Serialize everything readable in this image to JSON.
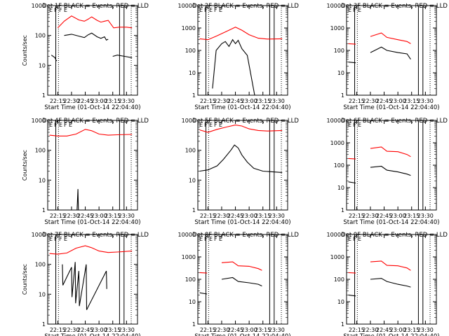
{
  "colors": {
    "events": "#000000",
    "lld": "#ff0000",
    "axis": "#000000",
    "background": "#ffffff"
  },
  "chart_data": [
    {
      "type": "line",
      "title": "Det 1F BLACK = Events, RED = LLD",
      "ylabel": "Counts/sec",
      "xlabel": "Start Time (01-Oct-14 22:04:40)",
      "ylog": true,
      "ylim": [
        1,
        1000
      ],
      "yticks": [
        "1",
        "10",
        "100",
        "1000"
      ],
      "xticks": [
        "22:15",
        "22:30",
        "22:45",
        "23:00",
        "23:15",
        "23:30"
      ],
      "flags": [
        "E",
        "F",
        "F",
        "E"
      ],
      "series": [
        {
          "name": "Events",
          "color": "#000000",
          "x": [
            "22:08",
            "22:12",
            "22:13",
            "22:14",
            "22:16",
            "22:22",
            "22:30",
            "22:38",
            "22:44",
            "22:48",
            "22:52",
            "22:58",
            "23:02",
            "23:06",
            "23:08",
            "23:10",
            "23:14",
            "23:15",
            "23:20",
            "23:28",
            "23:36"
          ],
          "y": [
            22,
            18,
            15,
            14,
            null,
            100,
            110,
            95,
            85,
            105,
            120,
            90,
            80,
            90,
            70,
            75,
            null,
            20,
            22,
            20,
            18
          ]
        },
        {
          "name": "LLD",
          "color": "#ff0000",
          "x": [
            "22:15",
            "22:22",
            "22:30",
            "22:38",
            "22:44",
            "22:48",
            "22:52",
            "22:58",
            "23:02",
            "23:06",
            "23:10",
            "23:16",
            "23:22",
            "23:30",
            "23:36"
          ],
          "y": [
            180,
            300,
            450,
            330,
            300,
            350,
            420,
            320,
            280,
            300,
            320,
            180,
            190,
            190,
            180
          ]
        }
      ]
    },
    {
      "type": "line",
      "title": "Det 2F BLACK = Events, RED = LLD",
      "ylabel": "",
      "xlabel": "Start Time (01-Oct-14 22:04:40)",
      "ylog": true,
      "ylim": [
        1,
        10000
      ],
      "yticks": [
        "1",
        "10",
        "100",
        "1000",
        "10000"
      ],
      "xticks": [
        "22:15",
        "22:30",
        "22:45",
        "23:00",
        "23:15",
        "23:30"
      ],
      "flags": [
        "E",
        "F",
        "E",
        "F",
        "E"
      ],
      "series": [
        {
          "name": "Events",
          "color": "#000000",
          "x": [
            "22:20",
            "22:24",
            "22:30",
            "22:34",
            "22:38",
            "22:42",
            "22:45",
            "22:48",
            "22:52",
            "22:58",
            "23:06"
          ],
          "y": [
            2,
            100,
            200,
            250,
            150,
            300,
            200,
            280,
            120,
            60,
            1
          ]
        },
        {
          "name": "LLD",
          "color": "#ff0000",
          "x": [
            "22:06",
            "22:15",
            "22:25",
            "22:35",
            "22:45",
            "22:52",
            "23:00",
            "23:10",
            "23:20",
            "23:36"
          ],
          "y": [
            330,
            300,
            450,
            700,
            1100,
            800,
            500,
            350,
            320,
            330
          ]
        }
      ]
    },
    {
      "type": "line",
      "title": "Det 3F BLACK = Events, RED = LLD",
      "ylabel": "",
      "xlabel": "Start Time (01-Oct-14 22:04:40)",
      "ylog": true,
      "ylim": [
        1,
        10000
      ],
      "yticks": [
        "1",
        "10",
        "100",
        "1000",
        "10000"
      ],
      "xticks": [
        "22:15",
        "22:30",
        "22:45",
        "23:00",
        "23:15",
        "23:30"
      ],
      "flags": [
        "E",
        "F",
        "E"
      ],
      "series": [
        {
          "name": "Events",
          "color": "#000000",
          "x": [
            "22:06",
            "22:14",
            "22:16",
            "22:30",
            "22:42",
            "22:48",
            "23:00",
            "23:10",
            "23:14",
            "23:17",
            "23:36"
          ],
          "y": [
            30,
            28,
            null,
            80,
            140,
            100,
            80,
            70,
            40,
            null,
            25
          ]
        },
        {
          "name": "LLD",
          "color": "#ff0000",
          "x": [
            "22:06",
            "22:14",
            "22:16",
            "22:30",
            "22:42",
            "22:48",
            "23:00",
            "23:10",
            "23:14",
            "23:17",
            "23:36"
          ],
          "y": [
            200,
            190,
            null,
            420,
            600,
            380,
            300,
            250,
            200,
            null,
            170
          ]
        }
      ]
    },
    {
      "type": "line",
      "title": "Det 4F BLACK = Events, RED = LLD",
      "ylabel": "Counts/sec",
      "xlabel": "Start Time (01-Oct-14 22:04:40)",
      "ylog": true,
      "ylim": [
        1,
        1000
      ],
      "yticks": [
        "1",
        "10",
        "100",
        "1000"
      ],
      "xticks": [
        "22:15",
        "22:30",
        "22:45",
        "23:00",
        "23:15",
        "23:30"
      ],
      "flags": [
        "E",
        "F",
        "E",
        "F",
        "E"
      ],
      "series": [
        {
          "name": "Events",
          "color": "#000000",
          "x": [
            "22:36",
            "22:36.5",
            "22:37",
            "22:37.5"
          ],
          "y": [
            1,
            2,
            5,
            1
          ]
        },
        {
          "name": "LLD",
          "color": "#ff0000",
          "x": [
            "22:06",
            "22:15",
            "22:25",
            "22:35",
            "22:45",
            "22:52",
            "23:00",
            "23:10",
            "23:20",
            "23:36"
          ],
          "y": [
            320,
            300,
            300,
            350,
            500,
            450,
            350,
            320,
            330,
            340
          ]
        }
      ]
    },
    {
      "type": "line",
      "title": "Det 5F BLACK = Events, RED = LLD",
      "ylabel": "",
      "xlabel": "Start Time (01-Oct-14 22:04:40)",
      "ylog": true,
      "ylim": [
        1,
        1000
      ],
      "yticks": [
        "1",
        "10",
        "100",
        "1000"
      ],
      "xticks": [
        "22:15",
        "22:30",
        "22:45",
        "23:00",
        "23:15",
        "23:30"
      ],
      "flags": [
        "E",
        "F",
        "E",
        "F",
        "E"
      ],
      "series": [
        {
          "name": "Events",
          "color": "#000000",
          "x": [
            "22:06",
            "22:15",
            "22:25",
            "22:32",
            "22:40",
            "22:44",
            "22:48",
            "22:52",
            "22:58",
            "23:05",
            "23:15",
            "23:36"
          ],
          "y": [
            20,
            22,
            30,
            50,
            100,
            150,
            120,
            70,
            40,
            25,
            20,
            18
          ]
        },
        {
          "name": "LLD",
          "color": "#ff0000",
          "x": [
            "22:06",
            "22:15",
            "22:25",
            "22:35",
            "22:45",
            "22:52",
            "23:00",
            "23:10",
            "23:20",
            "23:36"
          ],
          "y": [
            480,
            400,
            500,
            600,
            700,
            650,
            520,
            460,
            440,
            460
          ]
        }
      ]
    },
    {
      "type": "line",
      "title": "Det 6F BLACK = Events, RED = LLD",
      "ylabel": "",
      "xlabel": "Start Time (01-Oct-14 22:04:40)",
      "ylog": true,
      "ylim": [
        1,
        10000
      ],
      "yticks": [
        "1",
        "10",
        "100",
        "1000",
        "10000"
      ],
      "xticks": [
        "22:15",
        "22:30",
        "22:45",
        "23:00",
        "23:15",
        "23:30"
      ],
      "flags": [
        "E",
        "F",
        "E"
      ],
      "series": [
        {
          "name": "Events",
          "color": "#000000",
          "x": [
            "22:06",
            "22:14",
            "22:16",
            "22:30",
            "22:42",
            "22:48",
            "23:00",
            "23:10",
            "23:14",
            "23:17",
            "23:36"
          ],
          "y": [
            18,
            16,
            null,
            80,
            90,
            60,
            50,
            40,
            35,
            null,
            18
          ]
        },
        {
          "name": "LLD",
          "color": "#ff0000",
          "x": [
            "22:06",
            "22:14",
            "22:16",
            "22:30",
            "22:42",
            "22:48",
            "23:00",
            "23:10",
            "23:14",
            "23:17",
            "23:36"
          ],
          "y": [
            200,
            190,
            null,
            560,
            650,
            420,
            400,
            300,
            240,
            null,
            190
          ]
        }
      ]
    },
    {
      "type": "line",
      "title": "Det 7F BLACK = Events, RED = LLD",
      "ylabel": "Counts/sec",
      "xlabel": "Start Time (01-Oct-14 22:04:40)",
      "ylog": true,
      "ylim": [
        1,
        1000
      ],
      "yticks": [
        "1",
        "10",
        "100",
        "1000"
      ],
      "xticks": [
        "22:15",
        "22:30",
        "22:45",
        "23:00",
        "23:15",
        "23:30"
      ],
      "flags": [
        "E",
        "F",
        "F",
        "E"
      ],
      "series": [
        {
          "name": "Events",
          "color": "#000000",
          "x": [
            "22:20",
            "22:20.5",
            "22:30",
            "22:30.5",
            "22:34",
            "22:34.5",
            "22:38",
            "22:38.5",
            "22:46",
            "22:46.5",
            "23:08",
            "23:08.5"
          ],
          "y": [
            100,
            20,
            80,
            8,
            120,
            5,
            60,
            4,
            100,
            3,
            60,
            15
          ]
        },
        {
          "name": "LLD",
          "color": "#ff0000",
          "x": [
            "22:06",
            "22:15",
            "22:25",
            "22:35",
            "22:45",
            "22:52",
            "23:00",
            "23:10",
            "23:20",
            "23:36"
          ],
          "y": [
            230,
            220,
            240,
            350,
            420,
            360,
            280,
            250,
            260,
            280
          ]
        }
      ]
    },
    {
      "type": "line",
      "title": "Det 8F BLACK = Events, RED = LLD",
      "ylabel": "",
      "xlabel": "Start Time (01-Oct-14 22:04:40)",
      "ylog": true,
      "ylim": [
        1,
        10000
      ],
      "yticks": [
        "1",
        "10",
        "100",
        "1000",
        "10000"
      ],
      "xticks": [
        "22:15",
        "22:30",
        "22:45",
        "23:00",
        "23:15",
        "23:30"
      ],
      "flags": [
        "E",
        "F",
        "E",
        "F",
        "E"
      ],
      "series": [
        {
          "name": "Events",
          "color": "#000000",
          "x": [
            "22:06",
            "22:14",
            "22:16",
            "22:30",
            "22:42",
            "22:48",
            "23:00",
            "23:10",
            "23:14",
            "23:17",
            "23:36"
          ],
          "y": [
            25,
            22,
            null,
            100,
            120,
            80,
            70,
            60,
            50,
            null,
            28
          ]
        },
        {
          "name": "LLD",
          "color": "#ff0000",
          "x": [
            "22:06",
            "22:14",
            "22:16",
            "22:30",
            "22:42",
            "22:48",
            "23:00",
            "23:10",
            "23:14",
            "23:17",
            "23:36"
          ],
          "y": [
            200,
            190,
            null,
            550,
            600,
            400,
            380,
            300,
            250,
            null,
            180
          ]
        }
      ]
    },
    {
      "type": "line",
      "title": "Det 9F BLACK = Events, RED = LLD",
      "ylabel": "",
      "xlabel": "Start Time (01-Oct-14 22:04:40)",
      "ylog": true,
      "ylim": [
        1,
        10000
      ],
      "yticks": [
        "1",
        "10",
        "100",
        "1000",
        "10000"
      ],
      "xticks": [
        "22:15",
        "22:30",
        "22:45",
        "23:00",
        "23:15",
        "23:30"
      ],
      "flags": [
        "E",
        "F",
        "E"
      ],
      "series": [
        {
          "name": "Events",
          "color": "#000000",
          "x": [
            "22:06",
            "22:14",
            "22:16",
            "22:30",
            "22:42",
            "22:48",
            "23:00",
            "23:10",
            "23:14",
            "23:17",
            "23:36"
          ],
          "y": [
            20,
            18,
            null,
            100,
            110,
            80,
            60,
            50,
            45,
            null,
            22
          ]
        },
        {
          "name": "LLD",
          "color": "#ff0000",
          "x": [
            "22:06",
            "22:14",
            "22:16",
            "22:30",
            "22:42",
            "22:48",
            "23:00",
            "23:10",
            "23:14",
            "23:17",
            "23:36"
          ],
          "y": [
            200,
            190,
            null,
            600,
            650,
            420,
            400,
            320,
            250,
            null,
            190
          ]
        }
      ]
    }
  ]
}
